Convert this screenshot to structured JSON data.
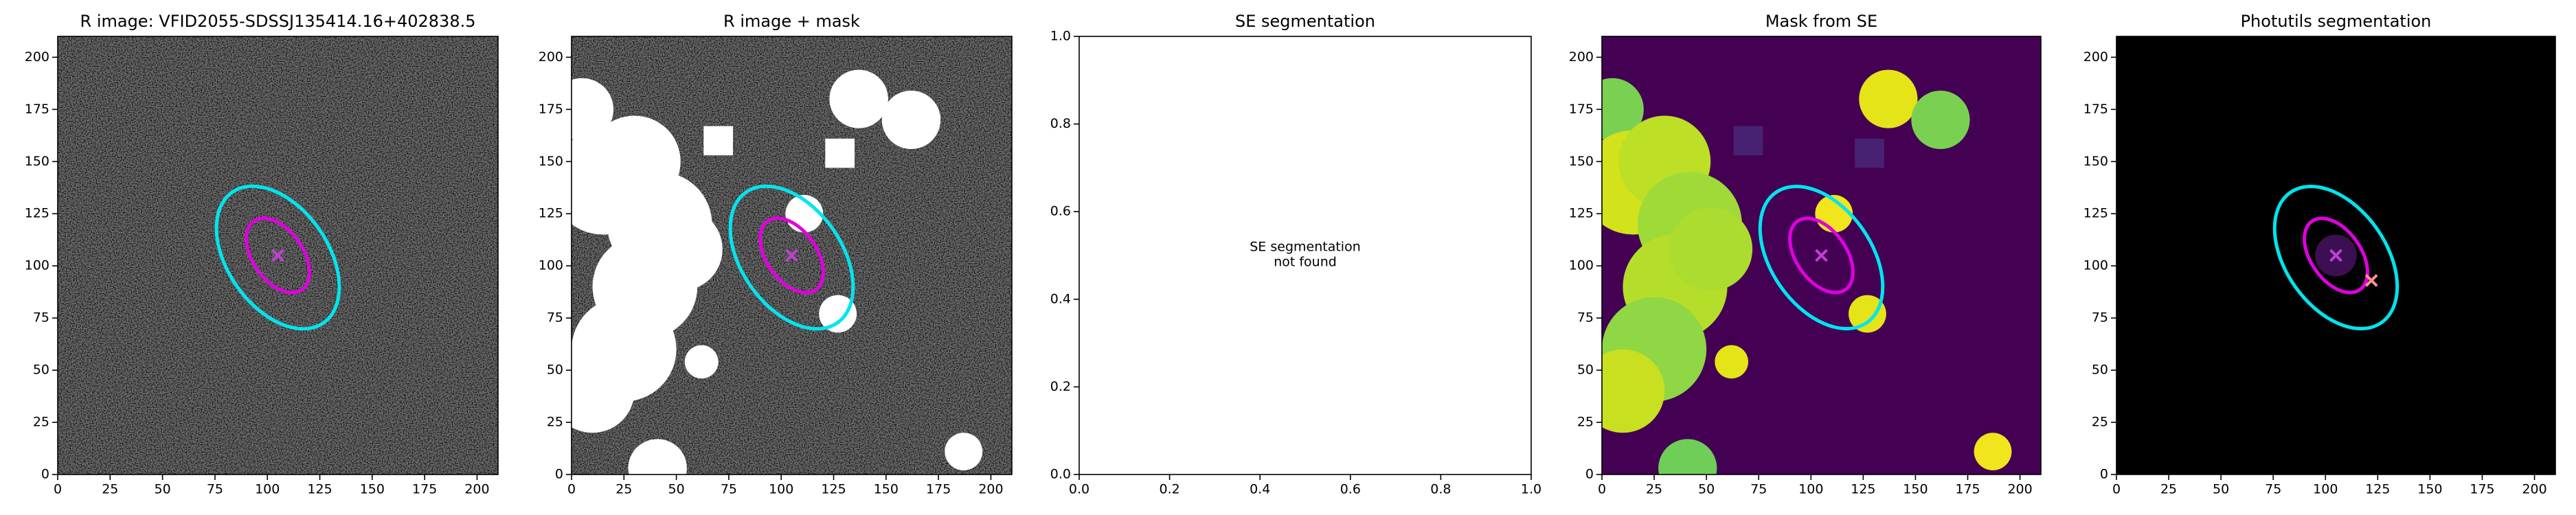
{
  "chart_data": [
    {
      "type": "image",
      "title": "R image: VFID2055-SDSSJ135414.16+402838.5",
      "xlim": [
        0,
        210
      ],
      "ylim": [
        0,
        210
      ],
      "xticks": [
        0,
        25,
        50,
        75,
        100,
        125,
        150,
        175,
        200
      ],
      "yticks": [
        0,
        25,
        50,
        75,
        100,
        125,
        150,
        175,
        200
      ],
      "background": "#6e6e6e",
      "noise": true,
      "ellipses": [
        {
          "x": 105,
          "y": 104,
          "a": 38,
          "b": 24,
          "angle": -55,
          "color": "#00e5ee"
        },
        {
          "x": 105,
          "y": 105,
          "a": 20,
          "b": 12,
          "angle": -55,
          "color": "#e000e0"
        }
      ],
      "markers": [
        {
          "x": 105,
          "y": 105,
          "color": "#c040d0"
        }
      ]
    },
    {
      "type": "image",
      "title": "R image + mask",
      "xlim": [
        0,
        210
      ],
      "ylim": [
        0,
        210
      ],
      "xticks": [
        0,
        25,
        50,
        75,
        100,
        125,
        150,
        175,
        200
      ],
      "yticks": [
        0,
        25,
        50,
        75,
        100,
        125,
        150,
        175,
        200
      ],
      "background": "#6e6e6e",
      "noise": true,
      "masks": [
        {
          "x": 5,
          "y": 175,
          "r": 15,
          "color": "#ffffff"
        },
        {
          "x": 15,
          "y": 140,
          "r": 25,
          "color": "#ffffff"
        },
        {
          "x": 30,
          "y": 150,
          "r": 22,
          "color": "#ffffff"
        },
        {
          "x": 42,
          "y": 120,
          "r": 25,
          "color": "#ffffff"
        },
        {
          "x": 35,
          "y": 90,
          "r": 25,
          "color": "#ffffff"
        },
        {
          "x": 25,
          "y": 60,
          "r": 25,
          "color": "#ffffff"
        },
        {
          "x": 10,
          "y": 40,
          "r": 20,
          "color": "#ffffff"
        },
        {
          "x": 52,
          "y": 108,
          "r": 20,
          "color": "#ffffff"
        },
        {
          "x": 62,
          "y": 54,
          "r": 8,
          "color": "#ffffff"
        },
        {
          "x": 137,
          "y": 180,
          "r": 14,
          "color": "#ffffff"
        },
        {
          "x": 162,
          "y": 170,
          "r": 14,
          "color": "#ffffff"
        },
        {
          "x": 111,
          "y": 125,
          "r": 9,
          "color": "#ffffff"
        },
        {
          "x": 127,
          "y": 77,
          "r": 9,
          "color": "#ffffff"
        },
        {
          "x": 41,
          "y": 3,
          "r": 14,
          "color": "#ffffff"
        },
        {
          "x": 187,
          "y": 11,
          "r": 9,
          "color": "#ffffff"
        }
      ],
      "mask_squares": [
        {
          "x": 70,
          "y": 160,
          "size": 14,
          "color": "#ffffff"
        },
        {
          "x": 128,
          "y": 154,
          "size": 14,
          "color": "#ffffff"
        }
      ],
      "ellipses": [
        {
          "x": 105,
          "y": 104,
          "a": 38,
          "b": 24,
          "angle": -55,
          "color": "#00e5ee"
        },
        {
          "x": 105,
          "y": 105,
          "a": 20,
          "b": 12,
          "angle": -55,
          "color": "#e000e0"
        }
      ],
      "markers": [
        {
          "x": 105,
          "y": 105,
          "color": "#c040d0"
        }
      ]
    },
    {
      "type": "empty",
      "title": "SE segmentation",
      "xlim": [
        0,
        1
      ],
      "ylim": [
        0,
        1
      ],
      "xticks": [
        {
          "value": 0,
          "label": "0.0"
        },
        {
          "value": 0.2,
          "label": "0.2"
        },
        {
          "value": 0.4,
          "label": "0.4"
        },
        {
          "value": 0.6,
          "label": "0.6"
        },
        {
          "value": 0.8,
          "label": "0.8"
        },
        {
          "value": 1,
          "label": "1.0"
        }
      ],
      "yticks": [
        {
          "value": 0,
          "label": "0.0"
        },
        {
          "value": 0.2,
          "label": "0.2"
        },
        {
          "value": 0.4,
          "label": "0.4"
        },
        {
          "value": 0.6,
          "label": "0.6"
        },
        {
          "value": 0.8,
          "label": "0.8"
        },
        {
          "value": 1,
          "label": "1.0"
        }
      ],
      "annotation": [
        "SE segmentation",
        "not found"
      ]
    },
    {
      "type": "image",
      "title": "Mask from SE",
      "xlim": [
        0,
        210
      ],
      "ylim": [
        0,
        210
      ],
      "xticks": [
        0,
        25,
        50,
        75,
        100,
        125,
        150,
        175,
        200
      ],
      "yticks": [
        0,
        25,
        50,
        75,
        100,
        125,
        150,
        175,
        200
      ],
      "background": "#440154",
      "noise": false,
      "masks": [
        {
          "x": 5,
          "y": 175,
          "r": 15,
          "color": "#7ad151"
        },
        {
          "x": 15,
          "y": 140,
          "r": 25,
          "color": "#d2e21b"
        },
        {
          "x": 30,
          "y": 150,
          "r": 22,
          "color": "#bddf26"
        },
        {
          "x": 42,
          "y": 120,
          "r": 25,
          "color": "#a0da39"
        },
        {
          "x": 35,
          "y": 90,
          "r": 25,
          "color": "#b5de2b"
        },
        {
          "x": 25,
          "y": 60,
          "r": 25,
          "color": "#8fd744"
        },
        {
          "x": 10,
          "y": 40,
          "r": 20,
          "color": "#c8e020"
        },
        {
          "x": 52,
          "y": 108,
          "r": 20,
          "color": "#addc30"
        },
        {
          "x": 62,
          "y": 54,
          "r": 8,
          "color": "#e5e419"
        },
        {
          "x": 137,
          "y": 180,
          "r": 14,
          "color": "#e5e419"
        },
        {
          "x": 162,
          "y": 170,
          "r": 14,
          "color": "#7ad151"
        },
        {
          "x": 111,
          "y": 125,
          "r": 9,
          "color": "#f1e51d"
        },
        {
          "x": 127,
          "y": 77,
          "r": 9,
          "color": "#e5e419"
        },
        {
          "x": 41,
          "y": 3,
          "r": 14,
          "color": "#6ece58"
        },
        {
          "x": 187,
          "y": 11,
          "r": 9,
          "color": "#f1e51d"
        }
      ],
      "mask_squares": [
        {
          "x": 70,
          "y": 160,
          "size": 14,
          "color": "#482173"
        },
        {
          "x": 128,
          "y": 154,
          "size": 14,
          "color": "#482173"
        }
      ],
      "ellipses": [
        {
          "x": 105,
          "y": 104,
          "a": 38,
          "b": 24,
          "angle": -55,
          "color": "#00e5ee"
        },
        {
          "x": 105,
          "y": 105,
          "a": 20,
          "b": 12,
          "angle": -55,
          "color": "#e000e0"
        }
      ],
      "markers": [
        {
          "x": 105,
          "y": 105,
          "color": "#c040d0"
        }
      ]
    },
    {
      "type": "image",
      "title": "Photutils segmentation",
      "xlim": [
        0,
        210
      ],
      "ylim": [
        0,
        210
      ],
      "xticks": [
        0,
        25,
        50,
        75,
        100,
        125,
        150,
        175,
        200
      ],
      "yticks": [
        0,
        25,
        50,
        75,
        100,
        125,
        150,
        175,
        200
      ],
      "background": "#000000",
      "noise": false,
      "masks": [
        {
          "x": 105,
          "y": 105,
          "r": 10,
          "color": "#3b0f52"
        }
      ],
      "ellipses": [
        {
          "x": 105,
          "y": 104,
          "a": 38,
          "b": 24,
          "angle": -55,
          "color": "#00e5ee"
        },
        {
          "x": 105,
          "y": 105,
          "a": 20,
          "b": 12,
          "angle": -55,
          "color": "#e000e0"
        }
      ],
      "markers": [
        {
          "x": 105,
          "y": 105,
          "color": "#c040d0"
        },
        {
          "x": 122,
          "y": 93,
          "color": "#ff9090"
        }
      ]
    }
  ]
}
